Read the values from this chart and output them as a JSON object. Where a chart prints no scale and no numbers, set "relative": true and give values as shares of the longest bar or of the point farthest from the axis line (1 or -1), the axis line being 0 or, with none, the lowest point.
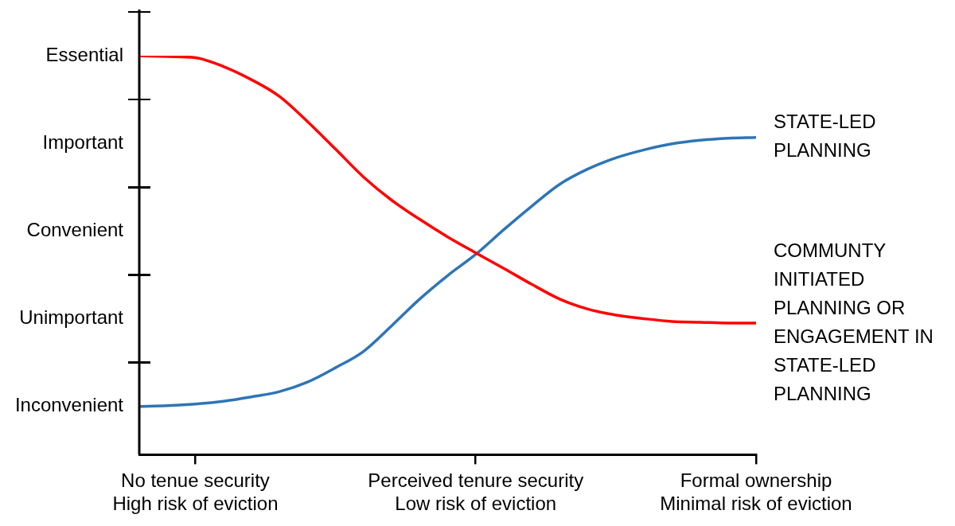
{
  "chart_data": {
    "type": "line",
    "legend": false,
    "grid": false,
    "marker": "none",
    "relative": true,
    "categories": [
      null,
      null,
      "No tenue security\nHigh risk of eviction",
      null,
      null,
      null,
      null,
      null,
      null,
      null,
      null,
      null,
      "Perceived tenure security\nLow risk of eviction",
      null,
      null,
      null,
      null,
      null,
      null,
      null,
      null,
      null,
      "Formal ownership\nMinimal risk of eviction"
    ],
    "annotations": [
      "Essential",
      "Important",
      "Convenient",
      "Unimportant",
      "Inconvenient"
    ],
    "series": [
      {
        "name": "COMMUNTY INITIATED PLANNING OR ENGAGEMENT IN STATE-LED PLANNING",
        "color": "#ff0000",
        "values": [
          1.0,
          0.998,
          0.995,
          0.973,
          0.94,
          0.898,
          0.835,
          0.766,
          0.696,
          0.638,
          0.59,
          0.546,
          0.506,
          0.467,
          0.427,
          0.39,
          0.365,
          0.35,
          0.341,
          0.334,
          0.332,
          0.33,
          0.33
        ]
      },
      {
        "name": "STATE-LED PLANNING",
        "color": "#2e75b6",
        "values": [
          0.121,
          0.123,
          0.127,
          0.134,
          0.145,
          0.158,
          0.182,
          0.218,
          0.259,
          0.323,
          0.39,
          0.449,
          0.502,
          0.564,
          0.623,
          0.678,
          0.716,
          0.744,
          0.764,
          0.779,
          0.788,
          0.793,
          0.795
        ]
      }
    ]
  }
}
